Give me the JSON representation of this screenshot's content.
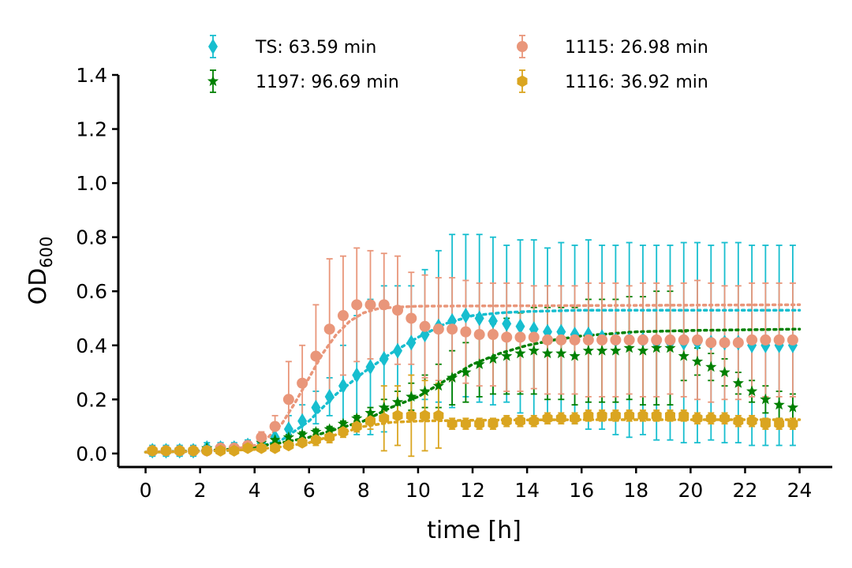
{
  "chart_data": {
    "type": "scatter",
    "title": "",
    "xlabel": "time [h]",
    "ylabel_main": "OD",
    "ylabel_sub": "600",
    "xlim": [
      -1.0,
      25.2
    ],
    "ylim": [
      -0.05,
      1.4
    ],
    "xticks": [
      "0",
      "2",
      "4",
      "6",
      "8",
      "10",
      "12",
      "14",
      "16",
      "18",
      "20",
      "22",
      "24"
    ],
    "yticks": [
      "0.0",
      "0.2",
      "0.4",
      "0.6",
      "0.8",
      "1.0",
      "1.2",
      "1.4"
    ],
    "grid": false,
    "legend_position": "top",
    "x": [
      0.25,
      0.75,
      1.25,
      1.75,
      2.25,
      2.75,
      3.25,
      3.75,
      4.25,
      4.75,
      5.25,
      5.75,
      6.25,
      6.75,
      7.25,
      7.75,
      8.25,
      8.75,
      9.25,
      9.75,
      10.25,
      10.75,
      11.25,
      11.75,
      12.25,
      12.75,
      13.25,
      13.75,
      14.25,
      14.75,
      15.25,
      15.75,
      16.25,
      16.75,
      17.25,
      17.75,
      18.25,
      18.75,
      19.25,
      19.75,
      20.25,
      20.75,
      21.25,
      21.75,
      22.25,
      22.75,
      23.25,
      23.75
    ],
    "series": [
      {
        "name": "TS: 63.59 min",
        "color": "#17becf",
        "marker": "diamond",
        "values": [
          0.01,
          0.01,
          0.01,
          0.01,
          0.02,
          0.02,
          0.02,
          0.03,
          0.04,
          0.06,
          0.09,
          0.12,
          0.17,
          0.21,
          0.25,
          0.29,
          0.32,
          0.35,
          0.38,
          0.41,
          0.44,
          0.47,
          0.49,
          0.51,
          0.5,
          0.49,
          0.48,
          0.47,
          0.46,
          0.45,
          0.45,
          0.44,
          0.44,
          0.43,
          0.42,
          0.42,
          0.42,
          0.41,
          0.41,
          0.41,
          0.41,
          0.41,
          0.41,
          0.41,
          0.4,
          0.4,
          0.4,
          0.4
        ],
        "errors": [
          0.02,
          0.02,
          0.02,
          0.02,
          0.02,
          0.02,
          0.02,
          0.02,
          0.03,
          0.04,
          0.05,
          0.06,
          0.06,
          0.07,
          0.15,
          0.22,
          0.25,
          0.27,
          0.24,
          0.21,
          0.24,
          0.28,
          0.32,
          0.3,
          0.31,
          0.31,
          0.29,
          0.32,
          0.33,
          0.31,
          0.33,
          0.33,
          0.35,
          0.34,
          0.35,
          0.36,
          0.35,
          0.36,
          0.36,
          0.37,
          0.37,
          0.36,
          0.37,
          0.37,
          0.37,
          0.37,
          0.37,
          0.37
        ],
        "fit": [
          [
            0,
            0.005
          ],
          [
            1,
            0.006
          ],
          [
            2,
            0.008
          ],
          [
            3,
            0.011
          ],
          [
            4,
            0.02
          ],
          [
            5,
            0.05
          ],
          [
            6,
            0.12
          ],
          [
            7,
            0.22
          ],
          [
            8,
            0.3
          ],
          [
            9,
            0.37
          ],
          [
            10,
            0.43
          ],
          [
            11,
            0.48
          ],
          [
            12,
            0.51
          ],
          [
            13,
            0.52
          ],
          [
            14,
            0.525
          ],
          [
            16,
            0.53
          ],
          [
            24,
            0.53
          ]
        ]
      },
      {
        "name": "1197: 96.69 min",
        "color": "#008000",
        "marker": "star",
        "values": [
          0.01,
          0.01,
          0.01,
          0.01,
          0.02,
          0.02,
          0.02,
          0.03,
          0.04,
          0.05,
          0.06,
          0.07,
          0.08,
          0.09,
          0.11,
          0.13,
          0.15,
          0.17,
          0.19,
          0.21,
          0.23,
          0.25,
          0.28,
          0.3,
          0.33,
          0.35,
          0.36,
          0.37,
          0.38,
          0.37,
          0.37,
          0.36,
          0.38,
          0.38,
          0.38,
          0.39,
          0.38,
          0.39,
          0.39,
          0.36,
          0.34,
          0.32,
          0.3,
          0.26,
          0.23,
          0.2,
          0.18,
          0.17
        ],
        "errors": [
          0.01,
          0.01,
          0.01,
          0.01,
          0.01,
          0.01,
          0.01,
          0.01,
          0.01,
          0.01,
          0.01,
          0.01,
          0.01,
          0.01,
          0.01,
          0.01,
          0.02,
          0.03,
          0.04,
          0.05,
          0.06,
          0.08,
          0.1,
          0.11,
          0.12,
          0.13,
          0.14,
          0.15,
          0.16,
          0.17,
          0.17,
          0.18,
          0.19,
          0.19,
          0.19,
          0.19,
          0.2,
          0.21,
          0.21,
          0.09,
          0.05,
          0.05,
          0.05,
          0.04,
          0.04,
          0.05,
          0.05,
          0.05
        ],
        "fit": [
          [
            0,
            0.005
          ],
          [
            2,
            0.01
          ],
          [
            3,
            0.015
          ],
          [
            4,
            0.025
          ],
          [
            5,
            0.04
          ],
          [
            6,
            0.06
          ],
          [
            7,
            0.09
          ],
          [
            8,
            0.12
          ],
          [
            9,
            0.17
          ],
          [
            10,
            0.21
          ],
          [
            11,
            0.27
          ],
          [
            12,
            0.33
          ],
          [
            13,
            0.37
          ],
          [
            14,
            0.4
          ],
          [
            15,
            0.42
          ],
          [
            16,
            0.435
          ],
          [
            18,
            0.45
          ],
          [
            20,
            0.455
          ],
          [
            24,
            0.46
          ]
        ]
      },
      {
        "name": "1115: 26.98 min",
        "color": "#e9967a",
        "marker": "circle",
        "values": [
          0.01,
          0.01,
          0.01,
          0.01,
          0.01,
          0.02,
          0.02,
          0.03,
          0.06,
          0.1,
          0.2,
          0.26,
          0.36,
          0.46,
          0.51,
          0.55,
          0.55,
          0.55,
          0.53,
          0.5,
          0.47,
          0.46,
          0.46,
          0.45,
          0.44,
          0.44,
          0.43,
          0.43,
          0.43,
          0.42,
          0.42,
          0.42,
          0.42,
          0.42,
          0.42,
          0.42,
          0.42,
          0.42,
          0.42,
          0.42,
          0.42,
          0.41,
          0.41,
          0.41,
          0.42,
          0.42,
          0.42,
          0.42
        ],
        "errors": [
          0.01,
          0.01,
          0.01,
          0.01,
          0.01,
          0.01,
          0.01,
          0.01,
          0.02,
          0.04,
          0.14,
          0.14,
          0.19,
          0.26,
          0.22,
          0.21,
          0.2,
          0.19,
          0.2,
          0.17,
          0.19,
          0.19,
          0.19,
          0.19,
          0.19,
          0.19,
          0.2,
          0.2,
          0.19,
          0.2,
          0.2,
          0.2,
          0.21,
          0.21,
          0.21,
          0.2,
          0.21,
          0.21,
          0.2,
          0.21,
          0.22,
          0.22,
          0.21,
          0.21,
          0.21,
          0.21,
          0.21,
          0.21
        ],
        "fit": [
          [
            0,
            0.005
          ],
          [
            2,
            0.008
          ],
          [
            3,
            0.012
          ],
          [
            4,
            0.03
          ],
          [
            4.5,
            0.06
          ],
          [
            5,
            0.11
          ],
          [
            5.5,
            0.19
          ],
          [
            6,
            0.28
          ],
          [
            6.5,
            0.37
          ],
          [
            7,
            0.44
          ],
          [
            7.5,
            0.49
          ],
          [
            8,
            0.52
          ],
          [
            8.5,
            0.535
          ],
          [
            9,
            0.54
          ],
          [
            10,
            0.545
          ],
          [
            24,
            0.55
          ]
        ]
      },
      {
        "name": "1116: 36.92 min",
        "color": "#daa520",
        "marker": "hexagon",
        "values": [
          0.01,
          0.01,
          0.01,
          0.01,
          0.01,
          0.01,
          0.01,
          0.02,
          0.02,
          0.02,
          0.03,
          0.04,
          0.05,
          0.06,
          0.08,
          0.1,
          0.12,
          0.13,
          0.14,
          0.14,
          0.14,
          0.14,
          0.11,
          0.11,
          0.11,
          0.11,
          0.12,
          0.12,
          0.12,
          0.13,
          0.13,
          0.13,
          0.14,
          0.14,
          0.14,
          0.14,
          0.14,
          0.14,
          0.14,
          0.14,
          0.13,
          0.13,
          0.13,
          0.12,
          0.12,
          0.11,
          0.11,
          0.11
        ],
        "errors": [
          0.01,
          0.01,
          0.01,
          0.01,
          0.01,
          0.01,
          0.01,
          0.01,
          0.01,
          0.01,
          0.01,
          0.01,
          0.02,
          0.02,
          0.02,
          0.02,
          0.03,
          0.12,
          0.11,
          0.15,
          0.13,
          0.12,
          0.02,
          0.02,
          0.02,
          0.02,
          0.02,
          0.02,
          0.02,
          0.02,
          0.02,
          0.02,
          0.02,
          0.02,
          0.02,
          0.02,
          0.02,
          0.02,
          0.02,
          0.02,
          0.02,
          0.02,
          0.02,
          0.02,
          0.02,
          0.02,
          0.02,
          0.02
        ],
        "fit": [
          [
            0,
            0.005
          ],
          [
            2,
            0.008
          ],
          [
            4,
            0.015
          ],
          [
            5,
            0.025
          ],
          [
            6,
            0.04
          ],
          [
            7,
            0.07
          ],
          [
            8,
            0.1
          ],
          [
            9,
            0.115
          ],
          [
            10,
            0.12
          ],
          [
            12,
            0.123
          ],
          [
            16,
            0.125
          ],
          [
            24,
            0.125
          ]
        ]
      }
    ]
  }
}
